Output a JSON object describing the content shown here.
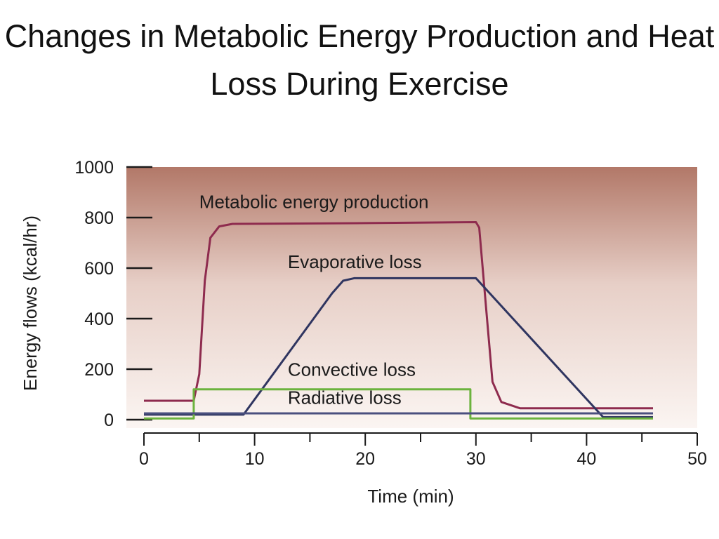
{
  "slide": {
    "title": "Changes in Metabolic Energy Production and Heat Loss During Exercise"
  },
  "colors": {
    "plot_bg_top": "#b27868",
    "plot_bg_mid": "#e7cfc7",
    "plot_bg_bottom": "#fbf5f2",
    "axis": "#1a1a1a"
  },
  "chart_data": {
    "type": "line",
    "title": "Changes in Metabolic Energy Production and Heat Loss During Exercise",
    "xlabel": "Time (min)",
    "ylabel": "Energy flows (kcal/hr)",
    "xlim": [
      0,
      50
    ],
    "ylim": [
      0,
      1000
    ],
    "x_ticks": [
      0,
      10,
      20,
      30,
      40,
      50
    ],
    "y_ticks": [
      0,
      200,
      400,
      600,
      800,
      1000
    ],
    "grid": false,
    "legend": "none (inline annotations)",
    "series": [
      {
        "name": "Metabolic energy production",
        "color": "#8e2b4e",
        "points": [
          [
            0,
            75
          ],
          [
            4.5,
            75
          ],
          [
            5,
            180
          ],
          [
            5.5,
            550
          ],
          [
            6,
            720
          ],
          [
            6.8,
            765
          ],
          [
            8,
            775
          ],
          [
            20,
            778
          ],
          [
            30,
            782
          ],
          [
            30.3,
            760
          ],
          [
            31,
            400
          ],
          [
            31.5,
            150
          ],
          [
            32.3,
            70
          ],
          [
            34,
            45
          ],
          [
            46,
            45
          ]
        ]
      },
      {
        "name": "Evaporative loss",
        "color": "#2f3560",
        "points": [
          [
            0,
            20
          ],
          [
            9,
            20
          ],
          [
            17,
            500
          ],
          [
            18,
            550
          ],
          [
            19,
            560
          ],
          [
            30,
            560
          ],
          [
            41.5,
            10
          ],
          [
            46,
            10
          ]
        ]
      },
      {
        "name": "Convective loss",
        "color": "#6cb33e",
        "points": [
          [
            0,
            5
          ],
          [
            4.5,
            5
          ],
          [
            4.5,
            120
          ],
          [
            29.5,
            120
          ],
          [
            29.5,
            5
          ],
          [
            46,
            5
          ]
        ]
      },
      {
        "name": "Radiative loss",
        "color": "#4a4f7e",
        "points": [
          [
            0,
            25
          ],
          [
            46,
            25
          ]
        ]
      }
    ],
    "annotations": [
      {
        "text": "Metabolic energy production",
        "series": "Metabolic energy production",
        "x": 5,
        "y": 838
      },
      {
        "text": "Evaporative loss",
        "series": "Evaporative loss",
        "x": 13,
        "y": 600
      },
      {
        "text": "Convective loss",
        "series": "Convective loss",
        "x": 13,
        "y": 173
      },
      {
        "text": "Radiative loss",
        "series": "Radiative loss",
        "x": 13,
        "y": 63
      }
    ]
  }
}
